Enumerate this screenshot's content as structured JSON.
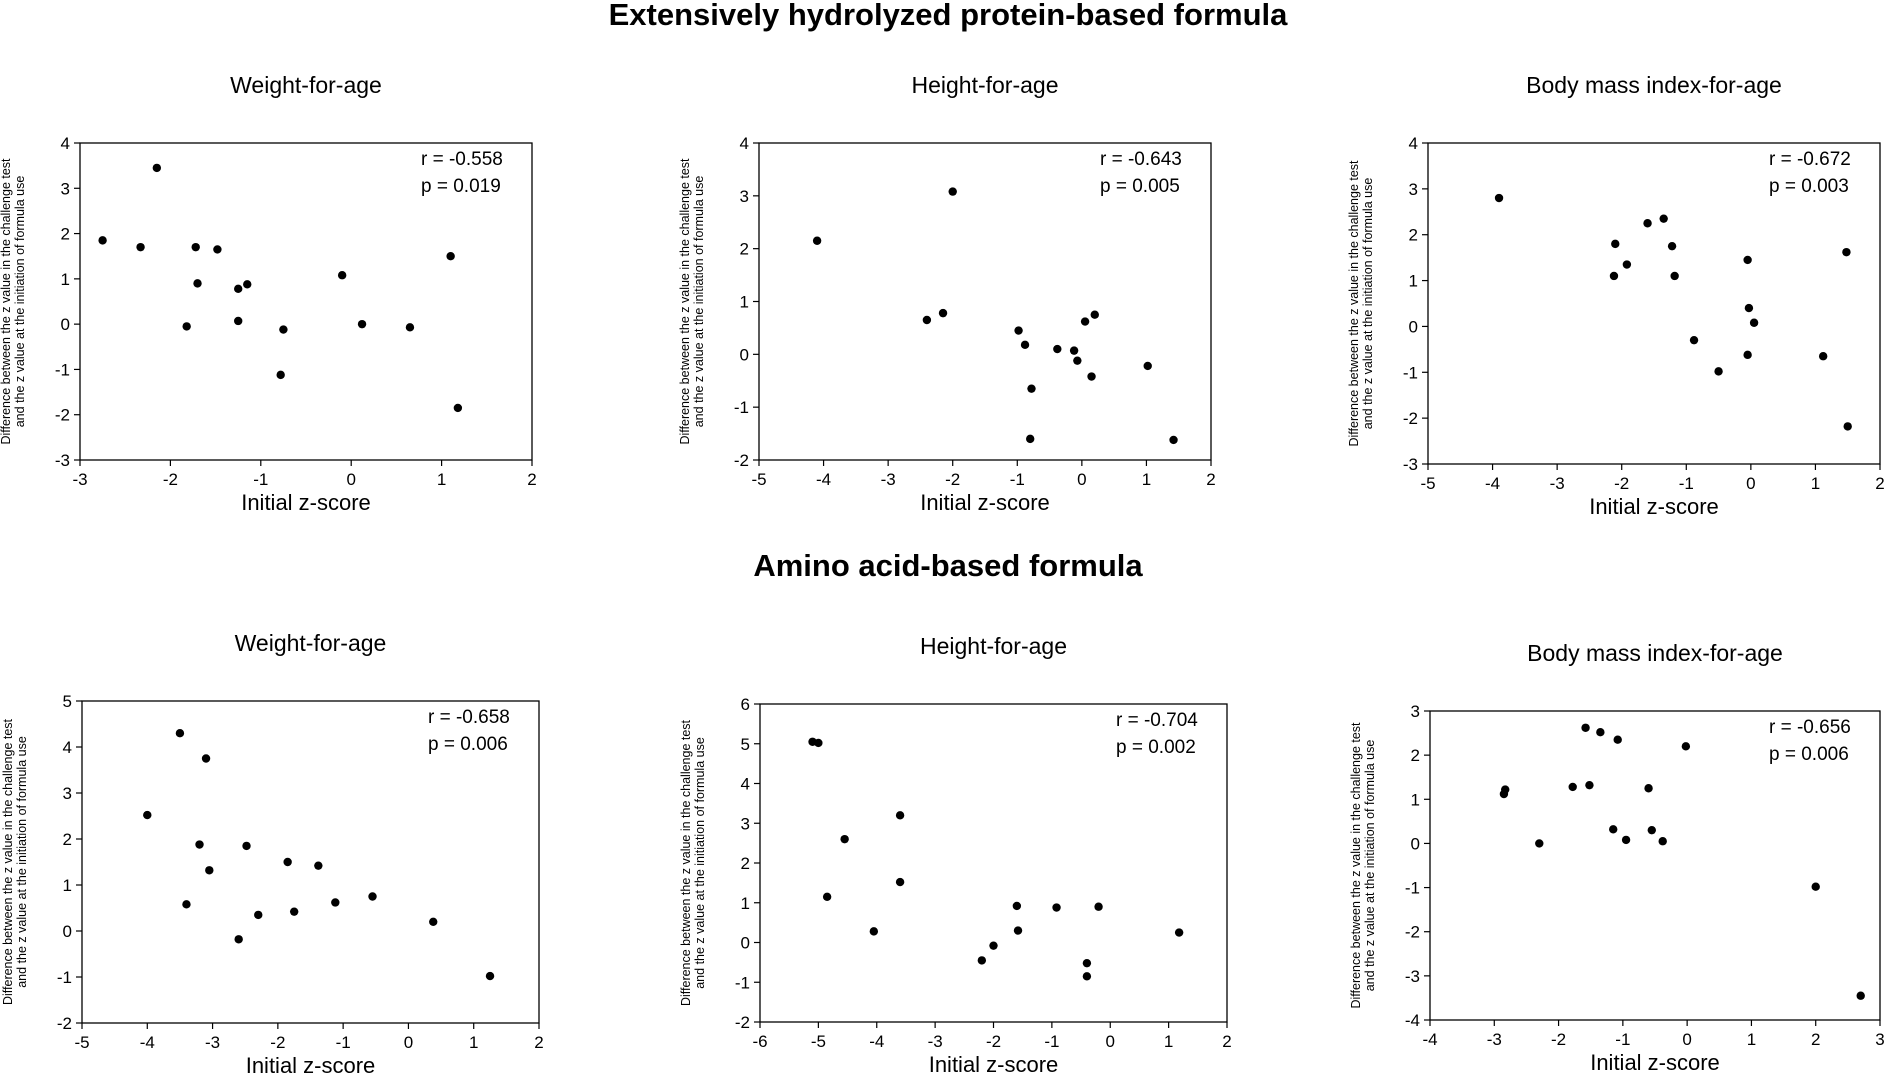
{
  "sections": [
    {
      "title": "Extensively hydrolyzed protein-based formula"
    },
    {
      "title": "Amino acid-based formula"
    }
  ],
  "chart_data": [
    {
      "type": "scatter",
      "title": "Weight-for-age",
      "xlabel": "Initial z-score",
      "ylabel_lines": [
        "Difference between the z value in the challenge test",
        "and the  z value at the initiation of formula use"
      ],
      "xlim": [
        -3,
        2
      ],
      "ylim": [
        -3,
        4
      ],
      "xticks": [
        "-3",
        "-2",
        "-1",
        "0",
        "1",
        "2"
      ],
      "yticks": [
        "-3",
        "-2",
        "-1",
        "0",
        "1",
        "2",
        "3",
        "4"
      ],
      "annotation": [
        "r = -0.558",
        "p = 0.019"
      ],
      "points": [
        {
          "x": -2.75,
          "y": 1.85
        },
        {
          "x": -2.33,
          "y": 1.7
        },
        {
          "x": -2.15,
          "y": 3.45
        },
        {
          "x": -1.82,
          "y": -0.05
        },
        {
          "x": -1.72,
          "y": 1.7
        },
        {
          "x": -1.7,
          "y": 0.9
        },
        {
          "x": -1.48,
          "y": 1.65
        },
        {
          "x": -1.25,
          "y": 0.78
        },
        {
          "x": -1.25,
          "y": 0.07
        },
        {
          "x": -1.15,
          "y": 0.88
        },
        {
          "x": -0.78,
          "y": -1.12
        },
        {
          "x": -0.75,
          "y": -0.12
        },
        {
          "x": -0.1,
          "y": 1.08
        },
        {
          "x": 0.12,
          "y": 0.0
        },
        {
          "x": 0.65,
          "y": -0.07
        },
        {
          "x": 1.1,
          "y": 1.5
        },
        {
          "x": 1.18,
          "y": -1.85
        }
      ]
    },
    {
      "type": "scatter",
      "title": "Height-for-age",
      "xlabel": "Initial z-score",
      "ylabel_lines": [
        "Difference between the z value in the challenge test",
        "and the z value at the initiation of formula use"
      ],
      "xlim": [
        -5,
        2
      ],
      "ylim": [
        -2,
        4
      ],
      "xticks": [
        "-5",
        "-4",
        "-3",
        "-2",
        "-1",
        "0",
        "1",
        "2"
      ],
      "yticks": [
        "-2",
        "-1",
        "0",
        "1",
        "2",
        "3",
        "4"
      ],
      "annotation": [
        "r = -0.643",
        "p = 0.005"
      ],
      "points": [
        {
          "x": -4.1,
          "y": 2.15
        },
        {
          "x": -2.4,
          "y": 0.65
        },
        {
          "x": -2.15,
          "y": 0.78
        },
        {
          "x": -2.0,
          "y": 3.08
        },
        {
          "x": -0.98,
          "y": 0.45
        },
        {
          "x": -0.88,
          "y": 0.18
        },
        {
          "x": -0.78,
          "y": -0.65
        },
        {
          "x": -0.8,
          "y": -1.6
        },
        {
          "x": -0.38,
          "y": 0.1
        },
        {
          "x": -0.12,
          "y": 0.07
        },
        {
          "x": -0.07,
          "y": -0.12
        },
        {
          "x": 0.05,
          "y": 0.62
        },
        {
          "x": 0.2,
          "y": 0.75
        },
        {
          "x": 0.15,
          "y": -0.42
        },
        {
          "x": 1.02,
          "y": -0.22
        },
        {
          "x": 1.42,
          "y": -1.62
        }
      ]
    },
    {
      "type": "scatter",
      "title": "Body mass index-for-age",
      "xlabel": "Initial z-score",
      "ylabel_lines": [
        "Difference between the z value in the challenge test",
        "and the z value at the initiation of formula use"
      ],
      "xlim": [
        -5,
        2
      ],
      "ylim": [
        -3,
        4
      ],
      "xticks": [
        "-5",
        "-4",
        "-3",
        "-2",
        "-1",
        "0",
        "1",
        "2"
      ],
      "yticks": [
        "-3",
        "-2",
        "-1",
        "0",
        "1",
        "2",
        "3",
        "4"
      ],
      "annotation": [
        "r = -0.672",
        "p = 0.003"
      ],
      "points": [
        {
          "x": -3.9,
          "y": 2.8
        },
        {
          "x": -2.1,
          "y": 1.8
        },
        {
          "x": -2.12,
          "y": 1.1
        },
        {
          "x": -1.92,
          "y": 1.35
        },
        {
          "x": -1.6,
          "y": 2.25
        },
        {
          "x": -1.35,
          "y": 2.35
        },
        {
          "x": -1.22,
          "y": 1.75
        },
        {
          "x": -1.18,
          "y": 1.1
        },
        {
          "x": -0.88,
          "y": -0.3
        },
        {
          "x": -0.5,
          "y": -0.98
        },
        {
          "x": -0.05,
          "y": 1.45
        },
        {
          "x": -0.03,
          "y": 0.4
        },
        {
          "x": -0.05,
          "y": -0.62
        },
        {
          "x": 0.05,
          "y": 0.08
        },
        {
          "x": 1.12,
          "y": -0.65
        },
        {
          "x": 1.48,
          "y": 1.62
        },
        {
          "x": 1.5,
          "y": -2.18
        }
      ]
    },
    {
      "type": "scatter",
      "title": "Weight-for-age",
      "xlabel": "Initial z-score",
      "ylabel_lines": [
        "Difference between the z value in the challenge test",
        "and the z value at the initiation of formula use"
      ],
      "xlim": [
        -5,
        2
      ],
      "ylim": [
        -2,
        5
      ],
      "xticks": [
        "-5",
        "-4",
        "-3",
        "-2",
        "-1",
        "0",
        "1",
        "2"
      ],
      "yticks": [
        "-2",
        "-1",
        "0",
        "1",
        "2",
        "3",
        "4",
        "5"
      ],
      "annotation": [
        "r = -0.658",
        "p = 0.006"
      ],
      "points": [
        {
          "x": -4.0,
          "y": 2.52
        },
        {
          "x": -3.5,
          "y": 4.3
        },
        {
          "x": -3.4,
          "y": 0.58
        },
        {
          "x": -3.2,
          "y": 1.88
        },
        {
          "x": -3.1,
          "y": 3.75
        },
        {
          "x": -3.05,
          "y": 1.32
        },
        {
          "x": -2.6,
          "y": -0.18
        },
        {
          "x": -2.48,
          "y": 1.85
        },
        {
          "x": -2.3,
          "y": 0.35
        },
        {
          "x": -1.85,
          "y": 1.5
        },
        {
          "x": -1.75,
          "y": 0.42
        },
        {
          "x": -1.38,
          "y": 1.42
        },
        {
          "x": -1.12,
          "y": 0.62
        },
        {
          "x": -0.55,
          "y": 0.75
        },
        {
          "x": 0.38,
          "y": 0.2
        },
        {
          "x": 1.25,
          "y": -0.98
        }
      ]
    },
    {
      "type": "scatter",
      "title": "Height-for-age",
      "xlabel": "Initial z-score",
      "ylabel_lines": [
        "Difference between the z value in the challenge test",
        "and the z value at the initiation of formula use"
      ],
      "xlim": [
        -6,
        2
      ],
      "ylim": [
        -2,
        6
      ],
      "xticks": [
        "-6",
        "-5",
        "-4",
        "-3",
        "-2",
        "-1",
        "0",
        "1",
        "2"
      ],
      "yticks": [
        "-2",
        "-1",
        "0",
        "1",
        "2",
        "3",
        "4",
        "5",
        "6"
      ],
      "annotation": [
        "r = -0.704",
        "p = 0.002"
      ],
      "points": [
        {
          "x": -5.1,
          "y": 5.05
        },
        {
          "x": -5.0,
          "y": 5.02
        },
        {
          "x": -4.85,
          "y": 1.15
        },
        {
          "x": -4.55,
          "y": 2.6
        },
        {
          "x": -4.05,
          "y": 0.28
        },
        {
          "x": -3.6,
          "y": 3.2
        },
        {
          "x": -3.6,
          "y": 1.52
        },
        {
          "x": -2.2,
          "y": -0.45
        },
        {
          "x": -2.0,
          "y": -0.08
        },
        {
          "x": -1.6,
          "y": 0.92
        },
        {
          "x": -1.58,
          "y": 0.3
        },
        {
          "x": -0.92,
          "y": 0.88
        },
        {
          "x": -0.4,
          "y": -0.52
        },
        {
          "x": -0.4,
          "y": -0.85
        },
        {
          "x": -0.2,
          "y": 0.9
        },
        {
          "x": 1.18,
          "y": 0.25
        }
      ]
    },
    {
      "type": "scatter",
      "title": "Body mass index-for-age",
      "xlabel": "Initial z-score",
      "ylabel_lines": [
        "Difference between the z value in the challenge test",
        "and the z value at the initiation of formula use"
      ],
      "xlim": [
        -4,
        3
      ],
      "ylim": [
        -4,
        3
      ],
      "xticks": [
        "-4",
        "-3",
        "-2",
        "-1",
        "0",
        "1",
        "2",
        "3"
      ],
      "yticks": [
        "-4",
        "-3",
        "-2",
        "-1",
        "0",
        "1",
        "2",
        "3"
      ],
      "annotation": [
        "r = -0.656",
        "p = 0.006"
      ],
      "points": [
        {
          "x": -2.85,
          "y": 1.12
        },
        {
          "x": -2.83,
          "y": 1.22
        },
        {
          "x": -2.3,
          "y": 0.0
        },
        {
          "x": -1.78,
          "y": 1.28
        },
        {
          "x": -1.58,
          "y": 2.62
        },
        {
          "x": -1.52,
          "y": 1.32
        },
        {
          "x": -1.35,
          "y": 2.52
        },
        {
          "x": -1.15,
          "y": 0.32
        },
        {
          "x": -1.08,
          "y": 2.35
        },
        {
          "x": -0.95,
          "y": 0.08
        },
        {
          "x": -0.6,
          "y": 1.25
        },
        {
          "x": -0.55,
          "y": 0.3
        },
        {
          "x": -0.38,
          "y": 0.05
        },
        {
          "x": -0.02,
          "y": 2.2
        },
        {
          "x": 2.0,
          "y": -0.98
        },
        {
          "x": 2.7,
          "y": -3.45
        }
      ]
    }
  ]
}
